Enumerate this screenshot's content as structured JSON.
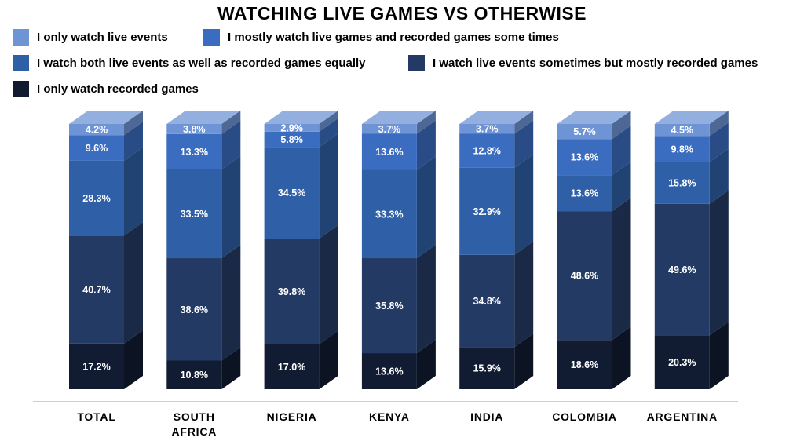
{
  "chart_data": {
    "type": "bar",
    "stacked": true,
    "style": "3d-stacked-columns",
    "title": "WATCHING LIVE GAMES VS OTHERWISE",
    "xlabel": "",
    "ylabel": "",
    "ylim": [
      0,
      100
    ],
    "grid": false,
    "legend_position": "top",
    "categories": [
      "TOTAL",
      "SOUTH AFRICA",
      "NIGERIA",
      "KENYA",
      "INDIA",
      "COLOMBIA",
      "ARGENTINA"
    ],
    "category_lines": [
      [
        "TOTAL"
      ],
      [
        "SOUTH",
        "AFRICA"
      ],
      [
        "NIGERIA"
      ],
      [
        "KENYA"
      ],
      [
        "INDIA"
      ],
      [
        "COLOMBIA"
      ],
      [
        "ARGENTINA"
      ]
    ],
    "series": [
      {
        "name": "I only watch recorded games",
        "color": "#111c33",
        "values": [
          17.2,
          10.8,
          17.0,
          13.6,
          15.9,
          18.6,
          20.3
        ],
        "labels": [
          "17.2%",
          "10.8%",
          "17.0%",
          "13.6%",
          "15.9%",
          "18.6%",
          "20.3%"
        ]
      },
      {
        "name": "I watch live events sometimes but mostly recorded games",
        "color": "#233a64",
        "values": [
          40.7,
          38.6,
          39.8,
          35.8,
          34.8,
          48.6,
          49.6
        ],
        "labels": [
          "40.7%",
          "38.6%",
          "39.8%",
          "35.8%",
          "34.8%",
          "48.6%",
          "49.6%"
        ]
      },
      {
        "name": "I watch both live events as well as recorded games equally",
        "color": "#2f5fa6",
        "values": [
          28.3,
          33.5,
          34.5,
          33.3,
          32.9,
          13.6,
          15.8
        ],
        "labels": [
          "28.3%",
          "33.5%",
          "34.5%",
          "33.3%",
          "32.9%",
          "13.6%",
          "15.8%"
        ]
      },
      {
        "name": "I mostly watch live games and recorded games some times",
        "color": "#3a6cc0",
        "values": [
          9.6,
          13.3,
          5.8,
          13.6,
          12.8,
          13.6,
          9.8
        ],
        "labels": [
          "9.6%",
          "13.3%",
          "5.8%",
          "13.6%",
          "12.8%",
          "13.6%",
          "9.8%"
        ]
      },
      {
        "name": "I only watch live events",
        "color": "#6f94d6",
        "values": [
          4.2,
          3.8,
          2.9,
          3.7,
          3.7,
          5.7,
          4.5
        ],
        "labels": [
          "4.2%",
          "3.8%",
          "2.9%",
          "3.7%",
          "3.7%",
          "5.7%",
          "4.5%"
        ]
      }
    ]
  },
  "legend": [
    {
      "label": "I only watch live events",
      "color": "#6f94d6"
    },
    {
      "label": "I mostly watch live games and recorded games some times",
      "color": "#3a6cc0"
    },
    {
      "label": "I watch both live events as well as recorded games equally",
      "color": "#2f5fa6"
    },
    {
      "label": "I watch live events sometimes but mostly recorded games",
      "color": "#233a64"
    },
    {
      "label": "I only watch recorded games",
      "color": "#111c33"
    }
  ]
}
